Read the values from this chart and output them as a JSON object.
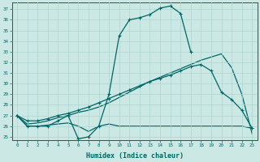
{
  "xlabel": "Humidex (Indice chaleur)",
  "xlim": [
    -0.5,
    23.5
  ],
  "ylim": [
    24.7,
    37.6
  ],
  "yticks": [
    25,
    26,
    27,
    28,
    29,
    30,
    31,
    32,
    33,
    34,
    35,
    36,
    37
  ],
  "xticks": [
    0,
    1,
    2,
    3,
    4,
    5,
    6,
    7,
    8,
    9,
    10,
    11,
    12,
    13,
    14,
    15,
    16,
    17,
    18,
    19,
    20,
    21,
    22,
    23
  ],
  "bg_color": "#cce8e4",
  "line_color": "#006666",
  "grid_color": "#add4cf",
  "s1_x": [
    0,
    1,
    2,
    3,
    4,
    5,
    6,
    7,
    8,
    9,
    10,
    11,
    12,
    13,
    14,
    15,
    16,
    17
  ],
  "s1_y": [
    27,
    26,
    26,
    26,
    26.5,
    27,
    24.8,
    25.0,
    26.0,
    29.0,
    34.5,
    36.0,
    36.2,
    36.5,
    37.1,
    37.3,
    36.6,
    33.0
  ],
  "s2_x": [
    0,
    1,
    2,
    3,
    4,
    5,
    6,
    7,
    8,
    9,
    10,
    11,
    12,
    13,
    14,
    15,
    16,
    17,
    18,
    19,
    20,
    21,
    22,
    23
  ],
  "s2_y": [
    27,
    26.2,
    26.3,
    26.5,
    26.8,
    27.0,
    27.3,
    27.5,
    27.8,
    28.2,
    28.7,
    29.2,
    29.7,
    30.2,
    30.6,
    31.0,
    31.4,
    31.8,
    32.2,
    32.5,
    32.8,
    31.5,
    29.0,
    25.3
  ],
  "s3_x": [
    0,
    1,
    2,
    3,
    4,
    5,
    6,
    7,
    8,
    9,
    10,
    11,
    12,
    13,
    14,
    15,
    16,
    17,
    18,
    19,
    20,
    21,
    22,
    23
  ],
  "s3_y": [
    27,
    26.0,
    26.0,
    26.1,
    26.2,
    26.3,
    26.0,
    25.5,
    26.0,
    26.2,
    26.0,
    26.0,
    26.0,
    26.0,
    26.0,
    26.0,
    26.0,
    26.0,
    26.0,
    26.0,
    26.0,
    26.0,
    26.0,
    25.8
  ],
  "s4_x": [
    0,
    1,
    2,
    3,
    4,
    5,
    6,
    7,
    8,
    9,
    10,
    11,
    12,
    13,
    14,
    15,
    16,
    17,
    18,
    19,
    20,
    21,
    22,
    23
  ],
  "s4_y": [
    27,
    26.5,
    26.5,
    26.7,
    27.0,
    27.2,
    27.5,
    27.8,
    28.2,
    28.6,
    29.0,
    29.4,
    29.8,
    30.2,
    30.5,
    30.8,
    31.2,
    31.6,
    31.8,
    31.2,
    29.2,
    28.5,
    27.5,
    25.8
  ]
}
